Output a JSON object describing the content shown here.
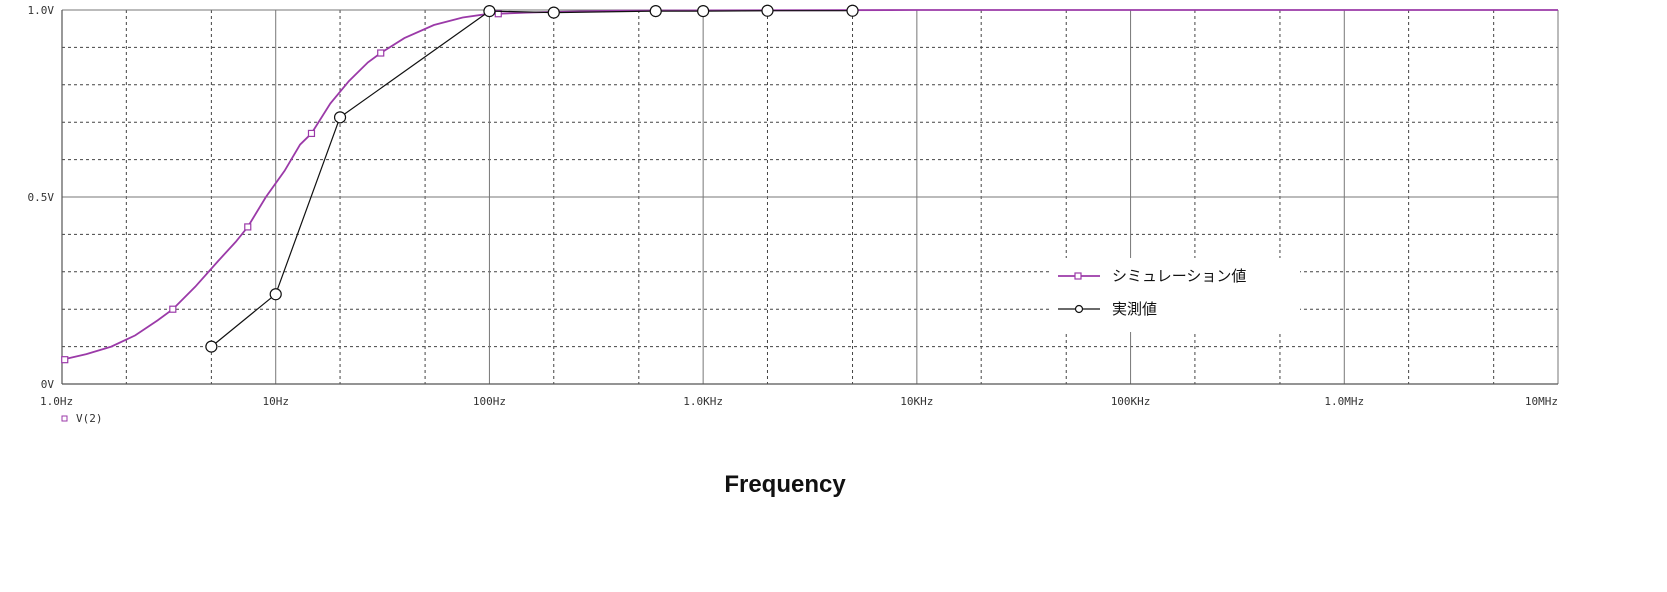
{
  "chart_data": {
    "type": "line",
    "xlabel": "Frequency",
    "ylabel": "",
    "x_scale": "log",
    "xlim": [
      1,
      10000000
    ],
    "ylim": [
      0,
      1.0
    ],
    "grid": true,
    "legend_position": "right",
    "x_ticks": [
      {
        "value": 1,
        "label": "1.0Hz"
      },
      {
        "value": 10,
        "label": "10Hz"
      },
      {
        "value": 100,
        "label": "100Hz"
      },
      {
        "value": 1000,
        "label": "1.0KHz"
      },
      {
        "value": 10000,
        "label": "10KHz"
      },
      {
        "value": 100000,
        "label": "100KHz"
      },
      {
        "value": 1000000,
        "label": "1.0MHz"
      },
      {
        "value": 10000000,
        "label": "10MHz"
      }
    ],
    "y_ticks": [
      {
        "value": 0,
        "label": "0V"
      },
      {
        "value": 0.5,
        "label": "0.5V"
      },
      {
        "value": 1.0,
        "label": "1.0V"
      }
    ],
    "trace_label": "V(2)",
    "series": [
      {
        "name": "シミュレーション値",
        "color": "#9b3aa8",
        "marker": "square",
        "x": [
          1.0,
          1.3,
          1.7,
          2.2,
          2.8,
          3.3,
          4.2,
          5.4,
          6.5,
          7.4,
          9.0,
          11.0,
          13.0,
          14.7,
          18.0,
          22.0,
          27.0,
          31.0,
          40.0,
          55.0,
          75.0,
          100.0,
          110.0,
          150.0,
          200.0,
          400.0,
          1000.0,
          10000.0,
          100000.0,
          1000000.0,
          10000000.0
        ],
        "y": [
          0.065,
          0.08,
          0.1,
          0.13,
          0.17,
          0.2,
          0.26,
          0.33,
          0.38,
          0.42,
          0.5,
          0.57,
          0.64,
          0.67,
          0.75,
          0.81,
          0.86,
          0.885,
          0.925,
          0.96,
          0.98,
          0.99,
          0.99,
          0.993,
          0.995,
          0.998,
          0.999,
          1.0,
          1.0,
          1.0,
          1.0
        ],
        "marker_x": [
          1.03,
          3.3,
          7.4,
          14.7,
          31.0,
          110.0
        ],
        "marker_y": [
          0.065,
          0.2,
          0.42,
          0.67,
          0.885,
          0.99
        ]
      },
      {
        "name": "実測値",
        "color": "#111111",
        "marker": "circle",
        "x": [
          5,
          10,
          20,
          100,
          200,
          600,
          1000,
          2000,
          5000
        ],
        "y": [
          0.1,
          0.24,
          0.713,
          0.997,
          0.993,
          0.997,
          0.997,
          0.998,
          0.998
        ]
      }
    ]
  }
}
